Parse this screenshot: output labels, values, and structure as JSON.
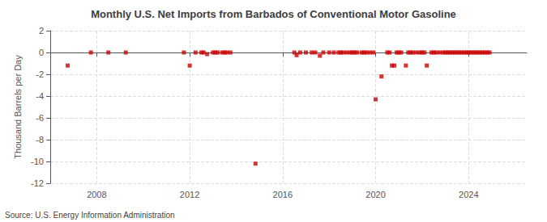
{
  "chart_data": {
    "type": "scatter",
    "title": "Monthly U.S. Net Imports from Barbados of Conventional Motor Gasoline",
    "ylabel": "Thousand Barrels per Day",
    "annotations": [
      "Source: U.S. Energy Information Administration"
    ],
    "color": "#cc0000",
    "marker": "square",
    "grid": true,
    "xlim": [
      2006.0,
      2026.5
    ],
    "xticks": [
      2008,
      2012,
      2016,
      2020,
      2024
    ],
    "ylim": [
      -12,
      2
    ],
    "yticks": [
      2,
      0,
      -2,
      -4,
      -6,
      -8,
      -10,
      -12
    ],
    "x": [
      2006.75,
      2007.75,
      2008.5,
      2009.25,
      2011.75,
      2012.0,
      2012.25,
      2012.5,
      2012.6,
      2012.75,
      2013.0,
      2013.1,
      2013.2,
      2013.4,
      2013.5,
      2013.6,
      2013.75,
      2014.83,
      2016.5,
      2016.6,
      2016.75,
      2017.0,
      2017.25,
      2017.4,
      2017.6,
      2017.75,
      2018.0,
      2018.2,
      2018.4,
      2018.5,
      2018.6,
      2018.75,
      2018.9,
      2019.0,
      2019.1,
      2019.2,
      2019.4,
      2019.5,
      2019.6,
      2019.75,
      2019.9,
      2020.0,
      2020.25,
      2020.5,
      2020.6,
      2020.7,
      2020.8,
      2020.9,
      2021.0,
      2021.1,
      2021.3,
      2021.4,
      2021.5,
      2021.6,
      2021.75,
      2021.9,
      2022.0,
      2022.1,
      2022.2,
      2022.4,
      2022.5,
      2022.6,
      2022.75,
      2022.9,
      2023.0,
      2023.1,
      2023.2,
      2023.3,
      2023.4,
      2023.5,
      2023.6,
      2023.7,
      2023.8,
      2023.9,
      2024.0,
      2024.1,
      2024.2,
      2024.3,
      2024.4,
      2024.5,
      2024.6,
      2024.7,
      2024.8,
      2024.9
    ],
    "values": [
      -1.2,
      0.0,
      0.0,
      0.0,
      0.0,
      -1.2,
      0.0,
      0.0,
      0.0,
      -0.15,
      0.0,
      0.0,
      0.0,
      0.0,
      0.0,
      0.0,
      0.0,
      -10.2,
      0.0,
      -0.25,
      0.0,
      0.0,
      0.0,
      0.0,
      -0.3,
      0.0,
      0.0,
      0.0,
      0.0,
      0.0,
      0.0,
      0.0,
      0.0,
      0.0,
      0.0,
      0.0,
      0.0,
      0.0,
      0.0,
      0.0,
      0.0,
      -4.3,
      -2.2,
      0.0,
      0.0,
      -1.2,
      -1.2,
      0.0,
      0.0,
      0.0,
      -1.2,
      0.0,
      0.0,
      0.0,
      0.0,
      0.0,
      0.0,
      0.0,
      -1.2,
      0.0,
      0.0,
      0.0,
      0.0,
      0.0,
      0.0,
      0.0,
      0.0,
      0.0,
      0.0,
      0.0,
      0.0,
      0.0,
      0.0,
      0.0,
      0.0,
      0.0,
      0.0,
      0.0,
      0.0,
      0.0,
      0.0,
      0.0,
      0.0,
      0.0
    ]
  }
}
